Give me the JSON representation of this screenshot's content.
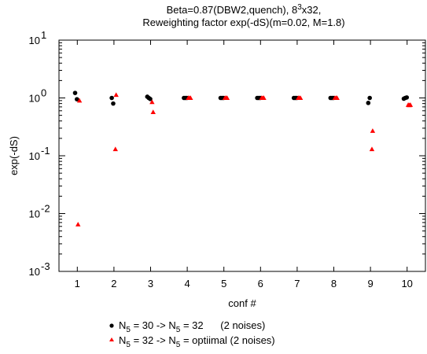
{
  "chart_data": {
    "type": "scatter",
    "title_line1": {
      "main": "Beta=0.87(DBW2,quench), 8",
      "sup": "3",
      "tail": "x32,"
    },
    "title_line2": "Reweighting factor exp(-dS)(m=0.02, M=1.8)",
    "xlabel": "conf #",
    "ylabel": "exp(-dS)",
    "yscale": "log",
    "xlim": [
      0.5,
      10.5
    ],
    "ylim": [
      0.001,
      10
    ],
    "x_ticks": [
      "1",
      "2",
      "3",
      "4",
      "5",
      "6",
      "7",
      "8",
      "9",
      "10"
    ],
    "y_ticks": [
      {
        "value": 0.001,
        "base": "10",
        "exp": "-3"
      },
      {
        "value": 0.01,
        "base": "10",
        "exp": "-2"
      },
      {
        "value": 0.1,
        "base": "10",
        "exp": "-1"
      },
      {
        "value": 1,
        "label": "10",
        "exp": "0"
      },
      {
        "value": 10,
        "base": "10",
        "exp": "1"
      }
    ],
    "grid": false,
    "legend_position": "bottom",
    "series": [
      {
        "name": "N5 = 30 -> N5 = 32      (2 noises)",
        "name_parts": {
          "a": "N",
          "asub": "5",
          "b": " = 30 -> N",
          "bsub": "5",
          "c": " = 32      (2 noises)"
        },
        "marker": "circle",
        "color": "#000000",
        "points": [
          [
            0.94,
            1.22
          ],
          [
            0.99,
            0.95
          ],
          [
            1.94,
            1.0
          ],
          [
            1.98,
            0.8
          ],
          [
            2.91,
            1.05
          ],
          [
            2.95,
            1.0
          ],
          [
            2.99,
            0.96
          ],
          [
            3.91,
            1.0
          ],
          [
            3.95,
            1.0
          ],
          [
            3.99,
            1.0
          ],
          [
            4.91,
            1.0
          ],
          [
            4.95,
            1.0
          ],
          [
            4.99,
            1.0
          ],
          [
            5.91,
            1.0
          ],
          [
            5.95,
            1.0
          ],
          [
            5.99,
            1.0
          ],
          [
            6.91,
            1.0
          ],
          [
            6.95,
            1.0
          ],
          [
            6.99,
            1.0
          ],
          [
            7.91,
            1.0
          ],
          [
            7.95,
            1.0
          ],
          [
            7.99,
            1.0
          ],
          [
            8.94,
            0.82
          ],
          [
            8.98,
            1.0
          ],
          [
            9.91,
            0.97
          ],
          [
            9.95,
            1.0
          ],
          [
            9.99,
            1.02
          ]
        ]
      },
      {
        "name": "N5 = 32 -> N5 = optiimal (2 noises)",
        "name_parts": {
          "a": "N",
          "asub": "5",
          "b": " = 32 -> N",
          "bsub": "5",
          "c": " = optiimal (2 noises)"
        },
        "marker": "triangle",
        "color": "#ff0000",
        "points": [
          [
            1.02,
            0.0065
          ],
          [
            1.06,
            0.9
          ],
          [
            2.04,
            0.13
          ],
          [
            2.06,
            1.13
          ],
          [
            3.04,
            0.85
          ],
          [
            3.07,
            0.57
          ],
          [
            4.03,
            1.0
          ],
          [
            4.06,
            1.0
          ],
          [
            4.09,
            1.0
          ],
          [
            5.03,
            1.0
          ],
          [
            5.06,
            1.0
          ],
          [
            5.09,
            1.0
          ],
          [
            6.03,
            1.0
          ],
          [
            6.06,
            1.0
          ],
          [
            6.09,
            1.0
          ],
          [
            7.03,
            1.0
          ],
          [
            7.06,
            1.0
          ],
          [
            7.09,
            1.0
          ],
          [
            8.03,
            1.0
          ],
          [
            8.06,
            1.0
          ],
          [
            8.09,
            1.0
          ],
          [
            9.04,
            0.13
          ],
          [
            9.06,
            0.27
          ],
          [
            10.03,
            0.76
          ],
          [
            10.06,
            0.75
          ],
          [
            10.09,
            0.76
          ]
        ]
      }
    ]
  }
}
